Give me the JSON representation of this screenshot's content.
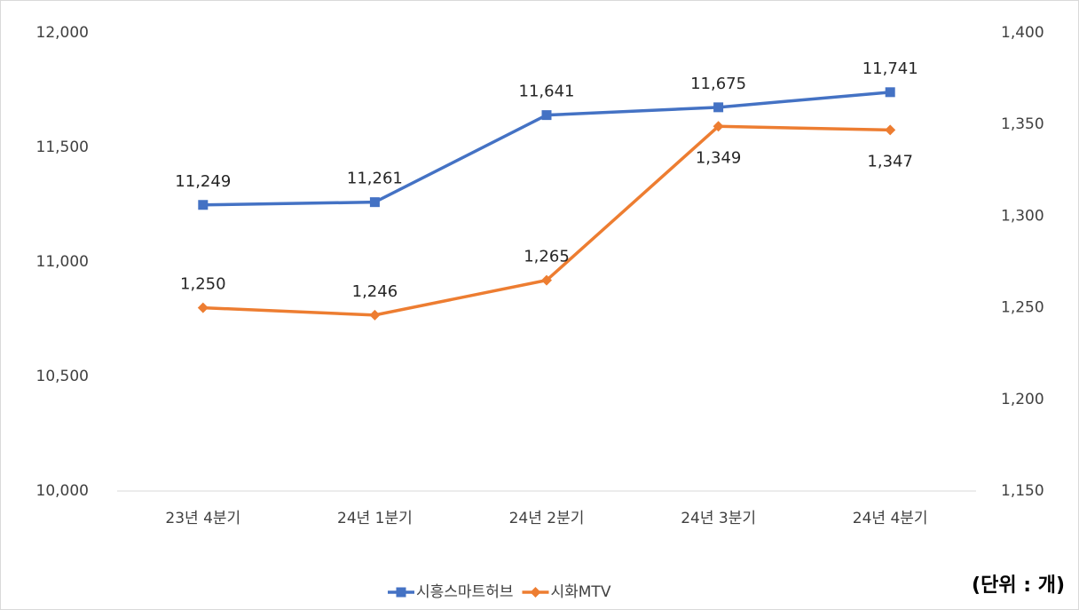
{
  "chart_data": {
    "type": "line",
    "categories": [
      "23년 4분기",
      "24년 1분기",
      "24년 2분기",
      "24년 3분기",
      "24년 4분기"
    ],
    "series": [
      {
        "name": "시흥스마트허브",
        "color": "#4472c4",
        "values": [
          11249,
          11261,
          11641,
          11675,
          11741
        ],
        "value_labels": [
          "11,249",
          "11,261",
          "11,641",
          "11,675",
          "11,741"
        ],
        "marker": "square"
      },
      {
        "name": "시화MTV",
        "color": "#ed7d31",
        "axis": "y2",
        "values": [
          1250,
          1246,
          1265,
          1349,
          1347
        ],
        "value_labels": [
          "1,250",
          "1,246",
          "1,265",
          "1,349",
          "1,347"
        ],
        "marker": "diamond"
      }
    ],
    "ylim": [
      10000,
      12000
    ],
    "yticks": [
      {
        "value": 10000,
        "label": "10,000"
      },
      {
        "value": 10500,
        "label": "10,500"
      },
      {
        "value": 11000,
        "label": "11,000"
      },
      {
        "value": 11500,
        "label": "11,500"
      },
      {
        "value": 12000,
        "label": "12,000"
      }
    ],
    "y2lim": [
      1150,
      1400
    ],
    "y2ticks": [
      {
        "value": 1150,
        "label": "1,150"
      },
      {
        "value": 1200,
        "label": "1,200"
      },
      {
        "value": 1250,
        "label": "1,250"
      },
      {
        "value": 1300,
        "label": "1,300"
      },
      {
        "value": 1350,
        "label": "1,350"
      },
      {
        "value": 1400,
        "label": "1,400"
      }
    ],
    "annotation": "(단위 : 개)",
    "legend": "bottom"
  }
}
